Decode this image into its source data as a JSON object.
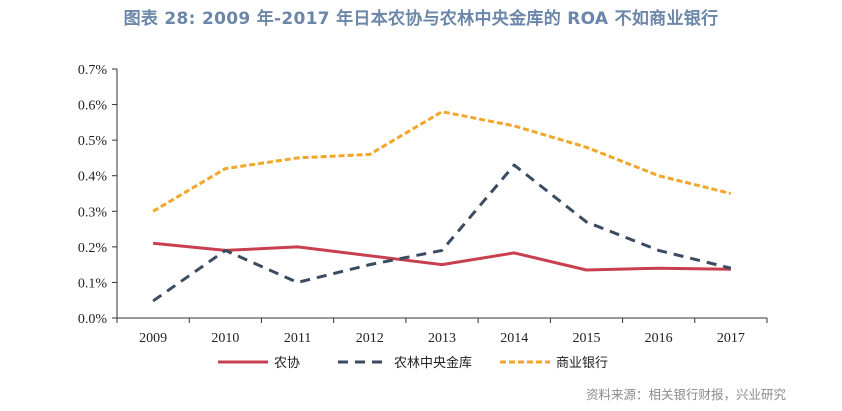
{
  "title": "图表 28: 2009 年-2017 年日本农协与农林中央金库的 ROA 不如商业银行",
  "source": "资料来源：相关银行财报，兴业研究",
  "chart_data": {
    "type": "line",
    "title": "图表 28: 2009 年-2017 年日本农协与农林中央金库的 ROA 不如商业银行",
    "xlabel": "",
    "ylabel": "",
    "x": [
      "2009",
      "2010",
      "2011",
      "2012",
      "2013",
      "2014",
      "2015",
      "2016",
      "2017"
    ],
    "ylim": [
      0,
      0.7
    ],
    "yticks": [
      "0.0%",
      "0.1%",
      "0.2%",
      "0.3%",
      "0.4%",
      "0.5%",
      "0.6%",
      "0.7%"
    ],
    "grid": false,
    "legend_position": "bottom",
    "series": [
      {
        "name": "农协",
        "style": "solid",
        "color": "#c8404f",
        "values": [
          0.21,
          0.19,
          0.2,
          0.175,
          0.15,
          0.183,
          0.135,
          0.14,
          0.137
        ]
      },
      {
        "name": "农林中央金库",
        "style": "dashed",
        "color": "#3b4b60",
        "values": [
          0.048,
          0.19,
          0.1,
          0.15,
          0.19,
          0.43,
          0.27,
          0.19,
          0.14
        ]
      },
      {
        "name": "商业银行",
        "style": "dotted",
        "color": "#f2a62c",
        "values": [
          0.3,
          0.42,
          0.45,
          0.46,
          0.58,
          0.54,
          0.48,
          0.4,
          0.35
        ]
      }
    ]
  }
}
